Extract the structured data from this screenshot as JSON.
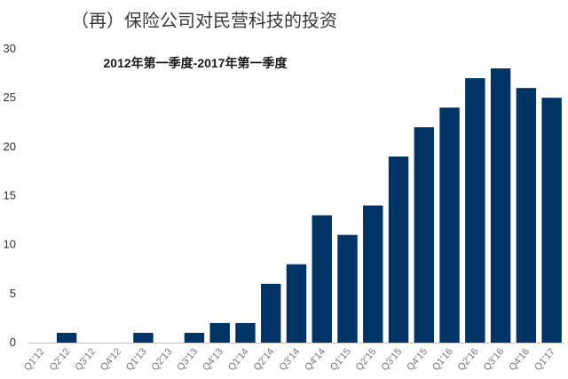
{
  "chart_data": {
    "type": "bar",
    "title": "（再）保险公司对民营科技的投资",
    "subtitle": "2012年第一季度-2017年第一季度",
    "xlabel": "",
    "ylabel": "",
    "categories": [
      "Q1'12",
      "Q2'12",
      "Q3'12",
      "Q4'12",
      "Q1'13",
      "Q2'13",
      "Q3'13",
      "Q4'13",
      "Q1'14",
      "Q2'14",
      "Q3'14",
      "Q4'14",
      "Q1'15",
      "Q2'15",
      "Q3'15",
      "Q4'15",
      "Q1'16",
      "Q2'16",
      "Q3'16",
      "Q4'16",
      "Q1'17"
    ],
    "values": [
      0,
      1,
      0,
      0,
      1,
      0,
      1,
      2,
      2,
      6,
      8,
      13,
      11,
      14,
      19,
      22,
      24,
      27,
      28,
      26,
      25
    ],
    "ylim": [
      0,
      30
    ],
    "yticks": [
      0,
      5,
      10,
      15,
      20,
      25,
      30
    ],
    "grid": false,
    "legend": "none",
    "bar_color": "#003366",
    "axis_color": "#bfbfbf"
  }
}
